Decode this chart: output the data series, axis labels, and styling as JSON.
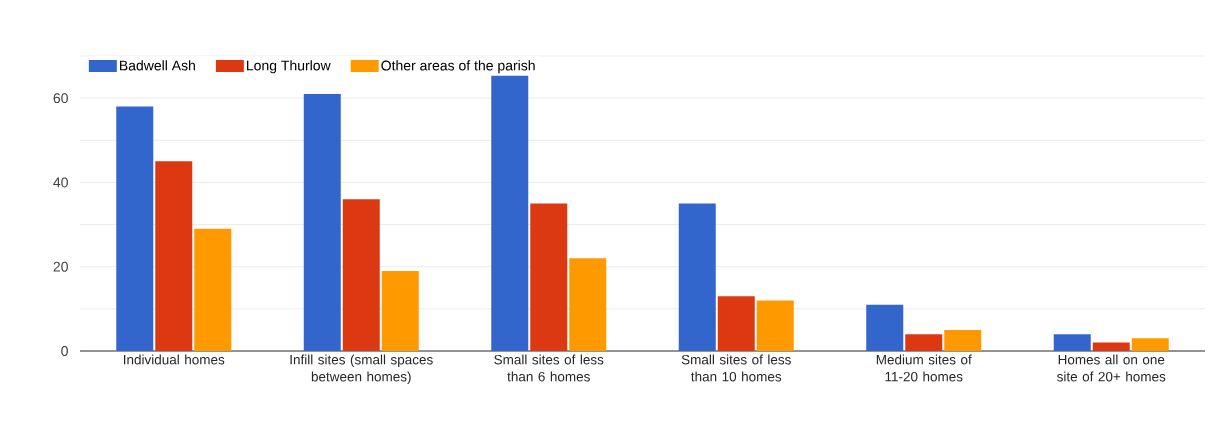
{
  "chart_data": {
    "type": "bar",
    "categories": [
      "Individual homes",
      "Infill sites (small spaces between homes)",
      "Small sites of less than 6 homes",
      "Small sites of less than 10 homes",
      "Medium sites of 11-20 homes",
      "Homes all on one site of 20+ homes"
    ],
    "series": [
      {
        "name": "Badwell Ash",
        "color": "#3366cc",
        "values": [
          58,
          61,
          66,
          35,
          11,
          4
        ]
      },
      {
        "name": "Long Thurlow",
        "color": "#dc3912",
        "values": [
          45,
          36,
          35,
          13,
          4,
          2
        ]
      },
      {
        "name": "Other areas of the parish",
        "color": "#ff9900",
        "values": [
          29,
          19,
          22,
          12,
          5,
          3
        ]
      }
    ],
    "ylim": [
      0,
      70
    ],
    "yticks": [
      0,
      {
        "value": 10,
        "label": null
      },
      20,
      {
        "value": 30,
        "label": null
      },
      40,
      {
        "value": 50,
        "label": null
      },
      60,
      {
        "value": 70,
        "label": null
      }
    ],
    "grid": "y",
    "legend": "top left"
  }
}
